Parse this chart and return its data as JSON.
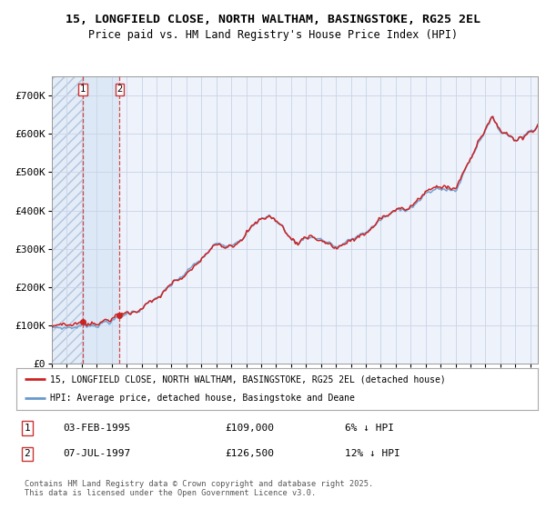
{
  "title_line1": "15, LONGFIELD CLOSE, NORTH WALTHAM, BASINGSTOKE, RG25 2EL",
  "title_line2": "Price paid vs. HM Land Registry's House Price Index (HPI)",
  "ylim": [
    0,
    750000
  ],
  "yticks": [
    0,
    100000,
    200000,
    300000,
    400000,
    500000,
    600000,
    700000
  ],
  "ytick_labels": [
    "£0",
    "£100K",
    "£200K",
    "£300K",
    "£400K",
    "£500K",
    "£600K",
    "£700K"
  ],
  "hpi_color": "#6699cc",
  "price_color": "#cc2222",
  "purchase1_date": 1995.08,
  "purchase1_price": 109000,
  "purchase2_date": 1997.52,
  "purchase2_price": 126500,
  "legend_label1": "15, LONGFIELD CLOSE, NORTH WALTHAM, BASINGSTOKE, RG25 2EL (detached house)",
  "legend_label2": "HPI: Average price, detached house, Basingstoke and Deane",
  "table_row1": [
    "1",
    "03-FEB-1995",
    "£109,000",
    "6% ↓ HPI"
  ],
  "table_row2": [
    "2",
    "07-JUL-1997",
    "£126,500",
    "12% ↓ HPI"
  ],
  "footnote": "Contains HM Land Registry data © Crown copyright and database right 2025.\nThis data is licensed under the Open Government Licence v3.0.",
  "background_plot": "#eef2fa",
  "background_fig": "#ffffff",
  "shaded_region_color": "#dce8f5",
  "grid_color": "#c8d4e8",
  "hatch_color": "#b0c4de",
  "xlim_start": 1993.0,
  "xlim_end": 2025.5
}
